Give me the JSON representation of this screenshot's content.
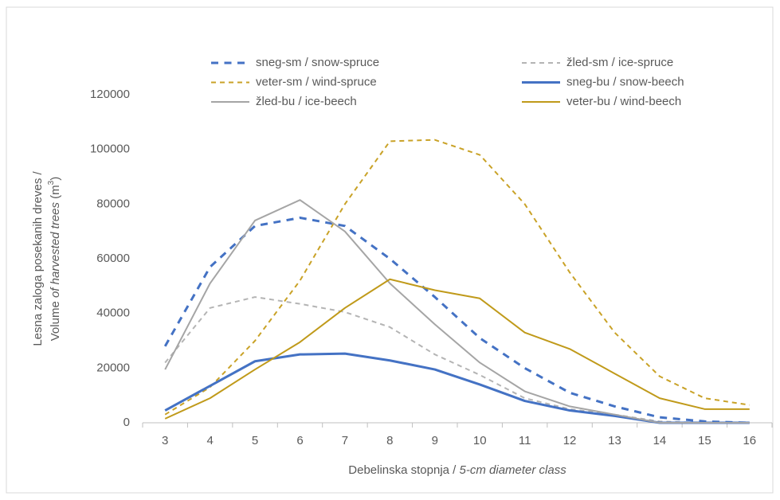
{
  "chart_data": {
    "type": "line",
    "y_label": {
      "line1": "Lesna zaloga posekanih dreves /",
      "line2": [
        "Volume ",
        "of harvested trees",
        " (m",
        "3",
        ")"
      ]
    },
    "x_label": [
      "Debelinska stopnja / ",
      "5-cm diameter class"
    ],
    "categories": [
      "3",
      "4",
      "5",
      "6",
      "7",
      "8",
      "9",
      "10",
      "11",
      "12",
      "13",
      "14",
      "15",
      "16"
    ],
    "ylim": [
      0,
      120000
    ],
    "yticks": [
      0,
      20000,
      40000,
      60000,
      80000,
      100000,
      120000
    ],
    "series": [
      {
        "name": "sneg-sm / snow-spruce",
        "color": "#4472c4",
        "style": "dashed",
        "width": 3,
        "values": [
          28000,
          57000,
          72000,
          75000,
          72000,
          60000,
          46000,
          31000,
          20000,
          11000,
          6000,
          2000,
          500,
          0
        ]
      },
      {
        "name": "žled-sm / ice-spruce",
        "color": "#b4b4b4",
        "style": "dashed",
        "width": 2,
        "values": [
          22000,
          42000,
          46000,
          43500,
          40500,
          35000,
          25000,
          17500,
          9000,
          5000,
          3000,
          500,
          0,
          0
        ]
      },
      {
        "name": "veter-sm / wind-spruce",
        "color": "#c9a227",
        "style": "dashed",
        "width": 2,
        "values": [
          3000,
          13000,
          30000,
          52000,
          80000,
          103000,
          103500,
          98000,
          80000,
          55000,
          33000,
          17000,
          9000,
          6500
        ]
      },
      {
        "name": "sneg-bu / snow-beech",
        "color": "#4472c4",
        "style": "solid",
        "width": 3,
        "values": [
          4500,
          13500,
          22500,
          25000,
          25300,
          22800,
          19500,
          14000,
          8000,
          4500,
          2500,
          0,
          0,
          0
        ]
      },
      {
        "name": "žled-bu / ice-beech",
        "color": "#a5a5a5",
        "style": "solid",
        "width": 2,
        "values": [
          19500,
          51000,
          74000,
          81500,
          70000,
          51000,
          36000,
          22000,
          11500,
          6000,
          3000,
          0,
          0,
          0
        ]
      },
      {
        "name": "veter-bu / wind-beech",
        "color": "#c09a1a",
        "style": "solid",
        "width": 2,
        "values": [
          1500,
          9000,
          19500,
          29500,
          42000,
          52500,
          48500,
          45500,
          33000,
          27000,
          18000,
          9000,
          5000,
          5000
        ]
      }
    ]
  }
}
